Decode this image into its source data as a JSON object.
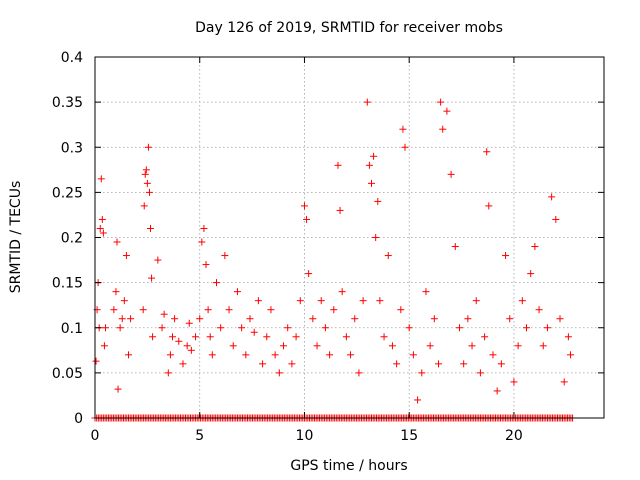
{
  "chart_data": {
    "type": "scatter",
    "title": "Day 126 of 2019, SRMTID for receiver mobs",
    "xlabel": "GPS time / hours",
    "ylabel": "SRMTID / TECUs",
    "xlim": [
      0,
      24.3
    ],
    "ylim": [
      0,
      0.4
    ],
    "x_ticks": [
      0,
      5,
      10,
      15,
      20
    ],
    "x_tick_labels": [
      "0",
      "5",
      "10",
      "15",
      "20"
    ],
    "y_ticks": [
      0,
      0.05,
      0.1,
      0.15,
      0.2,
      0.25,
      0.3,
      0.35,
      0.4
    ],
    "y_tick_labels": [
      "0",
      "0.05",
      "0.1",
      "0.15",
      "0.2",
      "0.25",
      "0.3",
      "0.35",
      "0.4"
    ],
    "grid": true,
    "marker": "+",
    "series": [
      {
        "name": "mobs",
        "color": "#ff0000",
        "x": [
          0.05,
          0.1,
          0.15,
          0.2,
          0.25,
          0.3,
          0.35,
          0.4,
          0.45,
          0.5,
          0.9,
          1.0,
          1.05,
          1.1,
          1.2,
          1.3,
          1.4,
          1.5,
          1.6,
          1.7,
          2.3,
          2.35,
          2.4,
          2.45,
          2.5,
          2.55,
          2.6,
          2.65,
          2.7,
          2.75,
          3.0,
          3.2,
          3.3,
          3.5,
          3.6,
          3.7,
          3.8,
          4.0,
          4.2,
          4.4,
          4.5,
          4.6,
          4.8,
          5.0,
          5.1,
          5.2,
          5.3,
          5.4,
          5.5,
          5.6,
          5.8,
          6.0,
          6.2,
          6.4,
          6.6,
          6.8,
          7.0,
          7.2,
          7.4,
          7.6,
          7.8,
          8.0,
          8.2,
          8.4,
          8.6,
          8.8,
          9.0,
          9.2,
          9.4,
          9.6,
          9.8,
          10.0,
          10.1,
          10.2,
          10.4,
          10.6,
          10.8,
          11.0,
          11.2,
          11.4,
          11.6,
          11.7,
          11.8,
          12.0,
          12.2,
          12.4,
          12.6,
          12.8,
          13.0,
          13.1,
          13.2,
          13.3,
          13.4,
          13.5,
          13.6,
          13.8,
          14.0,
          14.2,
          14.4,
          14.6,
          14.7,
          14.8,
          15.0,
          15.2,
          15.4,
          15.6,
          15.8,
          16.0,
          16.2,
          16.4,
          16.5,
          16.6,
          16.8,
          17.0,
          17.2,
          17.4,
          17.6,
          17.8,
          18.0,
          18.2,
          18.4,
          18.6,
          18.7,
          18.8,
          19.0,
          19.2,
          19.4,
          19.6,
          19.8,
          20.0,
          20.2,
          20.4,
          20.6,
          20.8,
          21.0,
          21.2,
          21.4,
          21.6,
          21.8,
          22.0,
          22.2,
          22.4,
          22.6,
          22.7
        ],
        "y": [
          0.063,
          0.12,
          0.15,
          0.1,
          0.21,
          0.265,
          0.22,
          0.205,
          0.08,
          0.1,
          0.12,
          0.14,
          0.195,
          0.032,
          0.1,
          0.11,
          0.13,
          0.18,
          0.07,
          0.11,
          0.12,
          0.235,
          0.27,
          0.275,
          0.26,
          0.3,
          0.25,
          0.21,
          0.155,
          0.09,
          0.175,
          0.1,
          0.115,
          0.05,
          0.07,
          0.09,
          0.11,
          0.085,
          0.06,
          0.08,
          0.105,
          0.075,
          0.09,
          0.11,
          0.195,
          0.21,
          0.17,
          0.12,
          0.09,
          0.07,
          0.15,
          0.1,
          0.18,
          0.12,
          0.08,
          0.14,
          0.1,
          0.07,
          0.11,
          0.095,
          0.13,
          0.06,
          0.09,
          0.12,
          0.07,
          0.05,
          0.08,
          0.1,
          0.06,
          0.09,
          0.13,
          0.235,
          0.22,
          0.16,
          0.11,
          0.08,
          0.13,
          0.1,
          0.07,
          0.12,
          0.28,
          0.23,
          0.14,
          0.09,
          0.07,
          0.11,
          0.05,
          0.13,
          0.35,
          0.28,
          0.26,
          0.29,
          0.2,
          0.24,
          0.13,
          0.09,
          0.18,
          0.08,
          0.06,
          0.12,
          0.32,
          0.3,
          0.1,
          0.07,
          0.02,
          0.05,
          0.14,
          0.08,
          0.11,
          0.06,
          0.35,
          0.32,
          0.34,
          0.27,
          0.19,
          0.1,
          0.06,
          0.11,
          0.08,
          0.13,
          0.05,
          0.09,
          0.295,
          0.235,
          0.07,
          0.03,
          0.06,
          0.18,
          0.11,
          0.04,
          0.08,
          0.13,
          0.1,
          0.16,
          0.19,
          0.12,
          0.08,
          0.1,
          0.245,
          0.22,
          0.11,
          0.04,
          0.09,
          0.07
        ],
        "zero_band_x": [
          0,
          22.8
        ]
      }
    ]
  }
}
